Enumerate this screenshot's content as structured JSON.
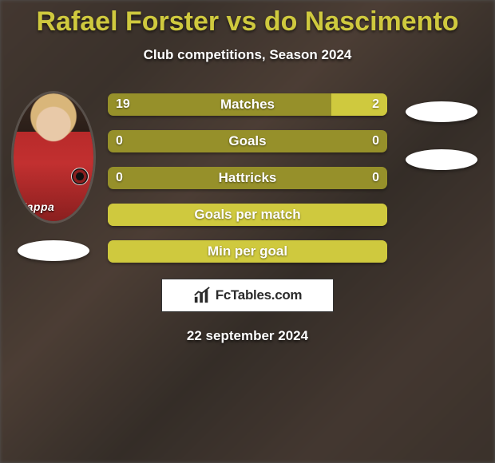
{
  "title_color": "#cfc93e",
  "title": "Rafael Forster vs do Nascimento",
  "subtitle": "Club competitions, Season 2024",
  "date": "22 september 2024",
  "bars": [
    {
      "label": "Matches",
      "left": "19",
      "right": "2",
      "right_fill_pct": 20,
      "full_fill": false
    },
    {
      "label": "Goals",
      "left": "0",
      "right": "0",
      "right_fill_pct": 0,
      "full_fill": false
    },
    {
      "label": "Hattricks",
      "left": "0",
      "right": "0",
      "right_fill_pct": 0,
      "full_fill": false
    },
    {
      "label": "Goals per match",
      "left": "",
      "right": "",
      "right_fill_pct": 0,
      "full_fill": true
    },
    {
      "label": "Min per goal",
      "left": "",
      "right": "",
      "right_fill_pct": 0,
      "full_fill": true
    }
  ],
  "colors": {
    "bar_base": "#96902a",
    "bar_fill": "#cfc93e",
    "flag": "#ffffff"
  },
  "brand": "FcTables.com",
  "player_kit_text": "Kappa"
}
